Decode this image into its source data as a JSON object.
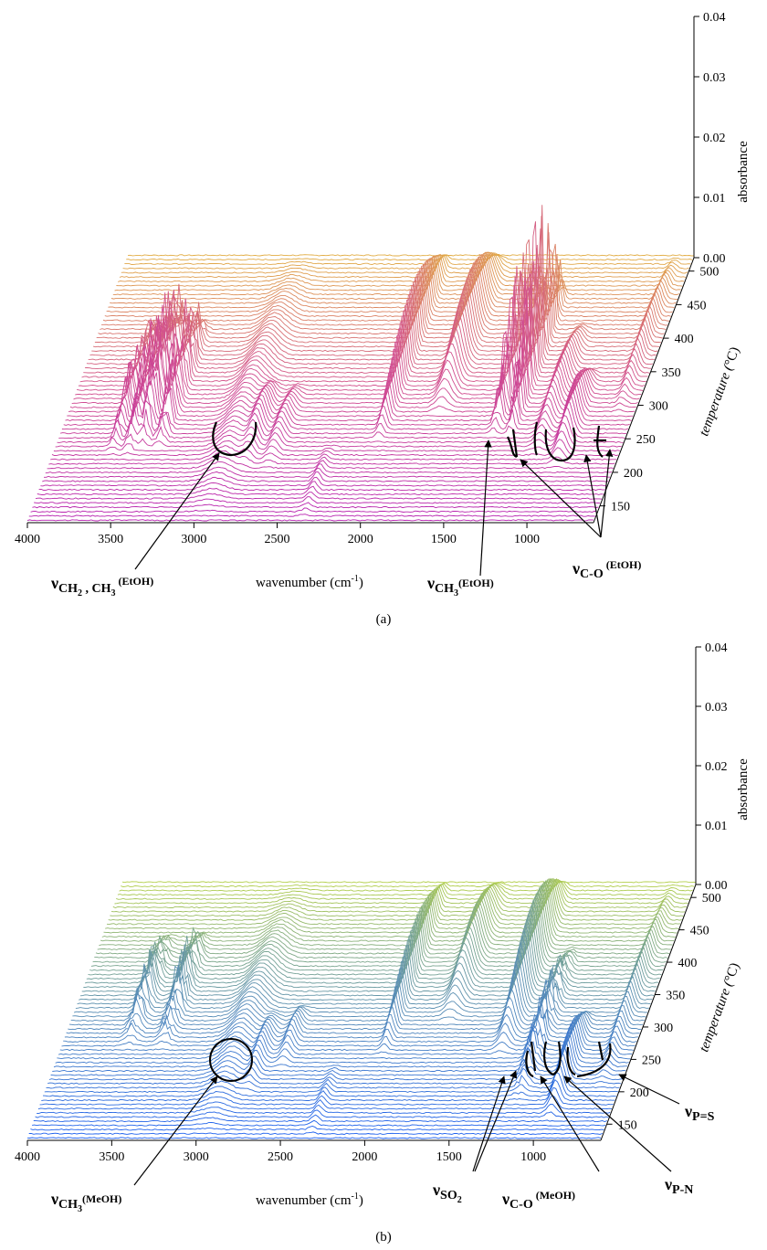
{
  "panels": [
    {
      "caption": "(a)",
      "xlabel": "wavenumber (cm",
      "xlabel_sup": "-1",
      "xlabel_end": ")",
      "zlabel": "absorbance",
      "ylabel": "temperature (",
      "ylabel_unit": "°C",
      "ylabel_end": ")",
      "colors": {
        "low": "#b61fb0",
        "mid": "#d2508e",
        "high": "#e2ad44"
      },
      "annotations": [
        {
          "main": "ν",
          "sub": "CH",
          "sub2": "2",
          "rest": " , CH",
          "sub3": "3",
          "sup": " (EtOH)"
        },
        {
          "main": "ν",
          "sub": "CH",
          "sub3": "3",
          "sup": "(EtOH)"
        },
        {
          "main": "ν",
          "sub": "C-O",
          "sup": " (EtOH)"
        }
      ]
    },
    {
      "caption": "(b)",
      "xlabel": "wavenumber (cm",
      "xlabel_sup": "-1",
      "xlabel_end": ")",
      "zlabel": "absorbance",
      "ylabel": "temperature (",
      "ylabel_unit": "°C",
      "ylabel_end": ")",
      "colors": {
        "low": "#1a5ef0",
        "mid": "#5b8fb4",
        "high": "#b3cf4a"
      },
      "annotations": [
        {
          "main": "ν",
          "sub": "CH",
          "sub3": "3",
          "sup": "(MeOH)"
        },
        {
          "main": "ν",
          "sub": "SO",
          "sub2": "2"
        },
        {
          "main": "ν",
          "sub": "C-O",
          "sup": " (MeOH)"
        },
        {
          "main": "ν",
          "sub": "P-N"
        },
        {
          "main": "ν",
          "sub": "P=S"
        }
      ]
    }
  ],
  "chart_data": [
    {
      "type": "line",
      "subtype": "3d-waterfall",
      "x_ticks": [
        "4000",
        "3500",
        "3000",
        "2500",
        "2000",
        "1500",
        "1000"
      ],
      "xlim": [
        4000,
        600
      ],
      "y_ticks": [
        "150",
        "200",
        "250",
        "300",
        "350",
        "400",
        "450",
        "500"
      ],
      "ylim": [
        125,
        520
      ],
      "z_ticks": [
        "0.00",
        "0.01",
        "0.02",
        "0.03",
        "0.04"
      ],
      "zlim": [
        0,
        0.04
      ],
      "peaks": [
        {
          "center": 3650,
          "width": 25,
          "amp": 0.006,
          "tmin": 220,
          "tmax": 420,
          "noisy": true
        },
        {
          "center": 3550,
          "width": 30,
          "amp": 0.009,
          "tmin": 220,
          "tmax": 420,
          "noisy": true
        },
        {
          "center": 3480,
          "width": 30,
          "amp": 0.012,
          "tmin": 230,
          "tmax": 420,
          "noisy": true
        },
        {
          "center": 3380,
          "width": 30,
          "amp": 0.01,
          "tmin": 230,
          "tmax": 420,
          "noisy": true
        },
        {
          "center": 2950,
          "width": 90,
          "amp": 0.0035,
          "tmin": 130,
          "tmax": 520,
          "noisy": false
        },
        {
          "center": 2820,
          "width": 40,
          "amp": 0.004,
          "tmin": 200,
          "tmax": 330,
          "noisy": false
        },
        {
          "center": 2680,
          "width": 40,
          "amp": 0.003,
          "tmin": 200,
          "tmax": 330,
          "noisy": false
        },
        {
          "center": 2350,
          "width": 30,
          "amp": 0.0015,
          "tmin": 125,
          "tmax": 240,
          "noisy": false
        },
        {
          "center": 2080,
          "width": 25,
          "amp": 0.011,
          "tmin": 240,
          "tmax": 520,
          "noisy": false
        },
        {
          "center": 1770,
          "width": 50,
          "amp": 0.01,
          "tmin": 280,
          "tmax": 520,
          "noisy": false
        },
        {
          "center": 1400,
          "width": 25,
          "amp": 0.014,
          "tmin": 250,
          "tmax": 470,
          "noisy": true
        },
        {
          "center": 1300,
          "width": 20,
          "amp": 0.019,
          "tmin": 250,
          "tmax": 470,
          "noisy": true
        },
        {
          "center": 1100,
          "width": 40,
          "amp": 0.005,
          "tmin": 220,
          "tmax": 420,
          "noisy": false
        },
        {
          "center": 950,
          "width": 40,
          "amp": 0.006,
          "tmin": 200,
          "tmax": 350,
          "noisy": false
        },
        {
          "center": 700,
          "width": 30,
          "amp": 0.004,
          "tmin": 280,
          "tmax": 520,
          "noisy": false
        }
      ]
    },
    {
      "type": "line",
      "subtype": "3d-waterfall",
      "x_ticks": [
        "4000",
        "3500",
        "3000",
        "2500",
        "2000",
        "1500",
        "1000"
      ],
      "xlim": [
        4000,
        600
      ],
      "y_ticks": [
        "150",
        "200",
        "250",
        "300",
        "350",
        "400",
        "450",
        "500"
      ],
      "ylim": [
        125,
        520
      ],
      "z_ticks": [
        "0.00",
        "0.01",
        "0.02",
        "0.03",
        "0.04"
      ],
      "zlim": [
        0,
        0.04
      ],
      "peaks": [
        {
          "center": 3600,
          "width": 40,
          "amp": 0.005,
          "tmin": 260,
          "tmax": 440,
          "noisy": true
        },
        {
          "center": 3400,
          "width": 40,
          "amp": 0.006,
          "tmin": 260,
          "tmax": 440,
          "noisy": true
        },
        {
          "center": 2950,
          "width": 90,
          "amp": 0.0035,
          "tmin": 130,
          "tmax": 520,
          "noisy": false
        },
        {
          "center": 2800,
          "width": 35,
          "amp": 0.003,
          "tmin": 190,
          "tmax": 320,
          "noisy": false
        },
        {
          "center": 2650,
          "width": 35,
          "amp": 0.003,
          "tmin": 230,
          "tmax": 330,
          "noisy": false
        },
        {
          "center": 2330,
          "width": 30,
          "amp": 0.0015,
          "tmin": 125,
          "tmax": 240,
          "noisy": false
        },
        {
          "center": 2080,
          "width": 25,
          "amp": 0.008,
          "tmin": 250,
          "tmax": 520,
          "noisy": false
        },
        {
          "center": 1760,
          "width": 50,
          "amp": 0.007,
          "tmin": 300,
          "tmax": 520,
          "noisy": false
        },
        {
          "center": 1380,
          "width": 40,
          "amp": 0.011,
          "tmin": 250,
          "tmax": 520,
          "noisy": false
        },
        {
          "center": 1180,
          "width": 40,
          "amp": 0.005,
          "tmin": 180,
          "tmax": 420,
          "noisy": true
        },
        {
          "center": 950,
          "width": 35,
          "amp": 0.006,
          "tmin": 150,
          "tmax": 320,
          "noisy": false
        },
        {
          "center": 720,
          "width": 30,
          "amp": 0.004,
          "tmin": 200,
          "tmax": 520,
          "noisy": false
        }
      ]
    }
  ]
}
